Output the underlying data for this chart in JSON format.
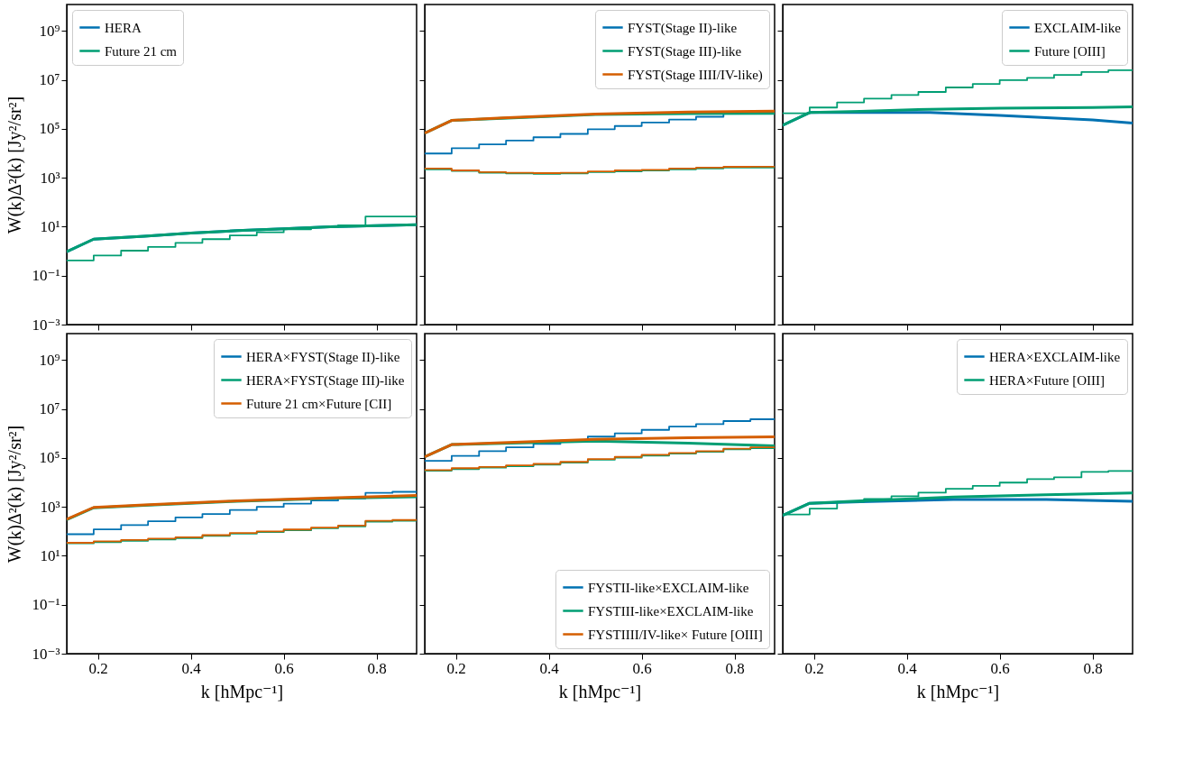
{
  "chart_data": [
    {
      "type": "line",
      "ylabel": "W(k)Δ²(k) [Jy²/sr²]",
      "log": "y",
      "legend": "top left",
      "tick_labels": "y",
      "xlim": [
        0.133,
        0.886
      ],
      "xticks": [
        0.2,
        0.4,
        0.6,
        0.8
      ],
      "ylim": [
        0.001,
        12000000000
      ],
      "yticks": [
        {
          "value": 0.001,
          "label": "10⁻³"
        },
        {
          "value": 0.1,
          "label": "10⁻¹"
        },
        {
          "value": 10,
          "label": "10¹"
        },
        {
          "value": 1000,
          "label": "10³"
        },
        {
          "value": 100000,
          "label": "10⁵"
        },
        {
          "value": 10000000,
          "label": "10⁷"
        },
        {
          "value": 1000000000,
          "label": "10⁹"
        }
      ],
      "x": [
        0.133,
        0.191,
        0.25,
        0.308,
        0.367,
        0.425,
        0.484,
        0.542,
        0.6,
        0.659,
        0.717,
        0.776,
        0.834,
        0.886
      ],
      "series": [
        {
          "name": "HERA",
          "type": "line",
          "color": "#0072b2",
          "x": [
            0.133,
            0.191,
            0.3,
            0.4,
            0.5,
            0.6,
            0.7,
            0.8,
            0.886
          ],
          "values": [
            0.95,
            3.1,
            4.1,
            5.5,
            6.9,
            8.3,
            10,
            11,
            12
          ]
        },
        {
          "name": "Future 21 cm",
          "type": "line",
          "color": "#009e73",
          "x": [
            0.133,
            0.191,
            0.3,
            0.4,
            0.5,
            0.6,
            0.7,
            0.8,
            0.886
          ],
          "values": [
            0.95,
            3.1,
            4.1,
            5.5,
            6.9,
            8.3,
            10,
            11,
            12
          ]
        },
        {
          "type": "step",
          "color": "#009e73",
          "values": [
            0.42,
            0.66,
            1.05,
            1.5,
            2.2,
            3.1,
            4.4,
            5.9,
            7.8,
            9.6,
            11.5,
            26,
            26,
            26
          ]
        }
      ]
    },
    {
      "type": "line",
      "log": "y",
      "legend": "top right",
      "tick_labels": false,
      "xlim": [
        0.133,
        0.886
      ],
      "xticks": [
        0.2,
        0.4,
        0.6,
        0.8
      ],
      "ylim": [
        0.001,
        12000000000
      ],
      "yticks": [
        0.001,
        0.1,
        10,
        1000,
        100000,
        10000000,
        1000000000
      ],
      "x": [
        0.133,
        0.191,
        0.25,
        0.308,
        0.367,
        0.425,
        0.484,
        0.542,
        0.6,
        0.659,
        0.717,
        0.776,
        0.834,
        0.886
      ],
      "series": [
        {
          "name": "FYST(Stage II)-like",
          "type": "step",
          "color": "#0072b2",
          "values": [
            9800,
            16000,
            23000,
            33000,
            45000,
            62000,
            96000,
            130000,
            180000,
            240000,
            310000,
            440000,
            490000,
            490000
          ]
        },
        {
          "name": "FYST(Stage III)-like",
          "type": "line",
          "color": "#009e73",
          "x": [
            0.133,
            0.191,
            0.3,
            0.5,
            0.7,
            0.886
          ],
          "values": [
            66000,
            220000,
            270000,
            380000,
            420000,
            430000
          ]
        },
        {
          "name": "FYST(Stage IIII/IV-like)",
          "type": "line",
          "color": "#d55e00",
          "x": [
            0.133,
            0.191,
            0.3,
            0.5,
            0.7,
            0.886
          ],
          "values": [
            66000,
            220000,
            280000,
            400000,
            480000,
            530000
          ]
        },
        {
          "type": "step",
          "color": "#009e73",
          "values": [
            2200,
            1900,
            1600,
            1500,
            1450,
            1500,
            1700,
            1800,
            2000,
            2200,
            2400,
            2600,
            2600,
            2600
          ]
        },
        {
          "type": "step",
          "color": "#d55e00",
          "values": [
            2400,
            2000,
            1700,
            1600,
            1550,
            1600,
            1800,
            2000,
            2100,
            2400,
            2600,
            2800,
            2850,
            2850
          ]
        }
      ]
    },
    {
      "type": "line",
      "log": "y",
      "legend": "top right",
      "tick_labels": false,
      "xlim": [
        0.133,
        0.886
      ],
      "xticks": [
        0.2,
        0.4,
        0.6,
        0.8
      ],
      "ylim": [
        0.001,
        12000000000
      ],
      "yticks": [
        0.001,
        0.1,
        10,
        1000,
        100000,
        10000000,
        1000000000
      ],
      "x": [
        0.133,
        0.191,
        0.25,
        0.308,
        0.367,
        0.425,
        0.484,
        0.542,
        0.6,
        0.659,
        0.717,
        0.776,
        0.834,
        0.886
      ],
      "series": [
        {
          "name": "EXCLAIM-like",
          "type": "line",
          "color": "#0072b2",
          "x": [
            0.133,
            0.191,
            0.3,
            0.45,
            0.6,
            0.8,
            0.886
          ],
          "values": [
            140000,
            460000,
            460000,
            460000,
            350000,
            230000,
            170000
          ]
        },
        {
          "name": "Future [OIII]",
          "type": "line",
          "color": "#009e73",
          "x": [
            0.133,
            0.191,
            0.3,
            0.45,
            0.6,
            0.8,
            0.886
          ],
          "values": [
            140000,
            460000,
            520000,
            630000,
            690000,
            740000,
            790000
          ]
        },
        {
          "type": "step",
          "color": "#009e73",
          "values": [
            430000,
            740000,
            1200000,
            1700000,
            2400000,
            3200000,
            4900000,
            6800000,
            9700000,
            12000000,
            16000000,
            21000000,
            25000000,
            25000000
          ]
        }
      ]
    },
    {
      "type": "line",
      "xlabel": "k [hMpc⁻¹]",
      "ylabel": "W(k)Δ²(k) [Jy²/sr²]",
      "log": "y",
      "legend": "top right",
      "xlim": [
        0.133,
        0.886
      ],
      "xticks": [
        0.2,
        0.4,
        0.6,
        0.8
      ],
      "ylim": [
        0.001,
        12000000000
      ],
      "yticks": [
        {
          "value": 0.001,
          "label": "10⁻³"
        },
        {
          "value": 0.1,
          "label": "10⁻¹"
        },
        {
          "value": 10,
          "label": "10¹"
        },
        {
          "value": 1000,
          "label": "10³"
        },
        {
          "value": 100000,
          "label": "10⁵"
        },
        {
          "value": 10000000,
          "label": "10⁷"
        },
        {
          "value": 1000000000,
          "label": "10⁹"
        }
      ],
      "x": [
        0.133,
        0.191,
        0.25,
        0.308,
        0.367,
        0.425,
        0.484,
        0.542,
        0.6,
        0.659,
        0.717,
        0.776,
        0.834,
        0.886
      ],
      "series": [
        {
          "name": "HERA×FYST(Stage II)-like",
          "type": "step",
          "color": "#0072b2",
          "values": [
            76,
            120,
            180,
            260,
            370,
            510,
            740,
            1000,
            1350,
            1800,
            2200,
            3700,
            4100,
            4100
          ]
        },
        {
          "name": "HERA×FYST(Stage III)-like",
          "type": "line",
          "color": "#009e73",
          "x": [
            0.133,
            0.191,
            0.3,
            0.5,
            0.7,
            0.886
          ],
          "values": [
            300,
            920,
            1150,
            1700,
            2200,
            2600
          ]
        },
        {
          "name": "Future 21 cm×Future [CII]",
          "type": "line",
          "color": "#d55e00",
          "x": [
            0.133,
            0.191,
            0.3,
            0.5,
            0.7,
            0.886
          ],
          "values": [
            310,
            950,
            1200,
            1750,
            2300,
            2900
          ]
        },
        {
          "type": "step",
          "color": "#009e73",
          "values": [
            32,
            36,
            41,
            46,
            53,
            65,
            80,
            93,
            110,
            133,
            160,
            250,
            270,
            270
          ]
        },
        {
          "type": "step",
          "color": "#d55e00",
          "values": [
            34,
            39,
            44,
            50,
            57,
            70,
            86,
            100,
            119,
            143,
            171,
            270,
            290,
            290
          ]
        }
      ]
    },
    {
      "type": "line",
      "xlabel": "k [hMpc⁻¹]",
      "log": "y",
      "legend": "bottom right",
      "tick_labels": "x",
      "xlim": [
        0.133,
        0.886
      ],
      "xticks": [
        0.2,
        0.4,
        0.6,
        0.8
      ],
      "ylim": [
        0.001,
        12000000000
      ],
      "yticks": [
        0.001,
        0.1,
        10,
        1000,
        100000,
        10000000,
        1000000000
      ],
      "x": [
        0.133,
        0.191,
        0.25,
        0.308,
        0.367,
        0.425,
        0.484,
        0.542,
        0.6,
        0.659,
        0.717,
        0.776,
        0.834,
        0.886
      ],
      "series": [
        {
          "name": "FYSTII-like×EXCLAIM-like",
          "type": "step",
          "color": "#0072b2",
          "values": [
            76000,
            120000,
            190000,
            270000,
            370000,
            510000,
            740000,
            1000000,
            1400000,
            1900000,
            2400000,
            3200000,
            3800000,
            3800000
          ]
        },
        {
          "name": "FYSTIII-like×EXCLAIM-like",
          "type": "line",
          "color": "#009e73",
          "x": [
            0.133,
            0.191,
            0.3,
            0.5,
            0.7,
            0.886
          ],
          "values": [
            110000,
            350000,
            390000,
            480000,
            400000,
            310000
          ]
        },
        {
          "name": "FYSTIIII/IV-like× Future [OIII]",
          "type": "line",
          "color": "#d55e00",
          "x": [
            0.133,
            0.191,
            0.3,
            0.5,
            0.7,
            0.886
          ],
          "values": [
            110000,
            350000,
            420000,
            570000,
            660000,
            720000
          ]
        },
        {
          "type": "step",
          "color": "#009e73",
          "values": [
            30000,
            35000,
            40000,
            46000,
            53000,
            64000,
            84000,
            102000,
            125000,
            150000,
            177000,
            223000,
            250000,
            250000
          ]
        },
        {
          "type": "step",
          "color": "#d55e00",
          "values": [
            32000,
            38000,
            43000,
            50000,
            57000,
            69000,
            90000,
            110000,
            135000,
            160000,
            190000,
            240000,
            270000,
            270000
          ]
        }
      ]
    },
    {
      "type": "line",
      "xlabel": "k [hMpc⁻¹]",
      "log": "y",
      "legend": "top right",
      "tick_labels": "x",
      "xlim": [
        0.133,
        0.886
      ],
      "xticks": [
        0.2,
        0.4,
        0.6,
        0.8
      ],
      "ylim": [
        0.001,
        12000000000
      ],
      "yticks": [
        0.001,
        0.1,
        10,
        1000,
        100000,
        10000000,
        1000000000
      ],
      "x": [
        0.133,
        0.191,
        0.25,
        0.308,
        0.367,
        0.425,
        0.484,
        0.542,
        0.6,
        0.659,
        0.717,
        0.776,
        0.834,
        0.886
      ],
      "series": [
        {
          "name": "HERA×EXCLAIM-like",
          "type": "line",
          "color": "#0072b2",
          "x": [
            0.133,
            0.191,
            0.3,
            0.5,
            0.7,
            0.886
          ],
          "values": [
            450,
            1400,
            1600,
            2000,
            2000,
            1700
          ]
        },
        {
          "name": "HERA×Future [OIII]",
          "type": "line",
          "color": "#009e73",
          "x": [
            0.133,
            0.191,
            0.3,
            0.5,
            0.7,
            0.886
          ],
          "values": [
            450,
            1400,
            1750,
            2500,
            3100,
            3700
          ]
        },
        {
          "type": "step",
          "color": "#009e73",
          "values": [
            490,
            850,
            1600,
            2100,
            2700,
            3800,
            5500,
            7200,
            9800,
            13500,
            16000,
            27000,
            29000,
            29000
          ]
        }
      ]
    }
  ]
}
